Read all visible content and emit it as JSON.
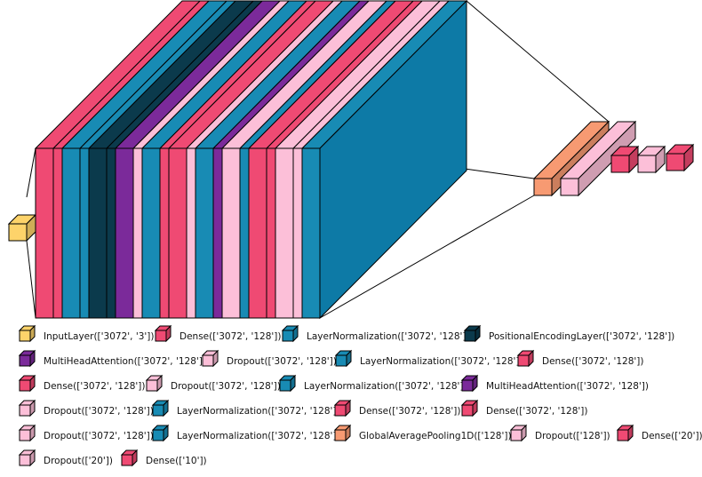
{
  "colors": {
    "input": "#fdd36a",
    "dense": "#ef4a73",
    "layernorm": "#188bb4",
    "posenc": "#0b3a4c",
    "mha": "#7b2a9a",
    "dropout": "#fcbfd8",
    "gap": "#f79a72",
    "outline": "#000000",
    "face": "#0d7aa6"
  },
  "layers": [
    {
      "name": "InputLayer",
      "shape": "['3072', '3']",
      "color": "input"
    },
    {
      "name": "Dense",
      "shape": "['3072', '128']",
      "color": "dense"
    },
    {
      "name": "Dense",
      "shape": "['3072', '128']",
      "color": "dense"
    },
    {
      "name": "LayerNormalization",
      "shape": "['3072', '128']",
      "color": "layernorm"
    },
    {
      "name": "LayerNormalization",
      "shape": "['3072', '128']",
      "color": "layernorm"
    },
    {
      "name": "PositionalEncodingLayer",
      "shape": "['3072', '128']",
      "color": "posenc"
    },
    {
      "name": "PositionalEncodingLayer",
      "shape": "['3072', '128']",
      "color": "posenc"
    },
    {
      "name": "MultiHeadAttention",
      "shape": "['3072', '128']",
      "color": "mha"
    },
    {
      "name": "Dropout",
      "shape": "['3072', '128']",
      "color": "dropout"
    },
    {
      "name": "LayerNormalization",
      "shape": "['3072', '128']",
      "color": "layernorm"
    },
    {
      "name": "Dense",
      "shape": "['3072', '128']",
      "color": "dense"
    },
    {
      "name": "Dense",
      "shape": "['3072', '128']",
      "color": "dense"
    },
    {
      "name": "Dropout",
      "shape": "['3072', '128']",
      "color": "dropout"
    },
    {
      "name": "LayerNormalization",
      "shape": "['3072', '128']",
      "color": "layernorm"
    },
    {
      "name": "MultiHeadAttention",
      "shape": "['3072', '128']",
      "color": "mha"
    },
    {
      "name": "Dropout",
      "shape": "['3072', '128']",
      "color": "dropout"
    },
    {
      "name": "LayerNormalization",
      "shape": "['3072', '128']",
      "color": "layernorm"
    },
    {
      "name": "Dense",
      "shape": "['3072', '128']",
      "color": "dense"
    },
    {
      "name": "Dense",
      "shape": "['3072', '128']",
      "color": "dense"
    },
    {
      "name": "Dropout",
      "shape": "['3072', '128']",
      "color": "dropout"
    },
    {
      "name": "Dropout",
      "shape": "['3072', '128']",
      "color": "dropout"
    },
    {
      "name": "LayerNormalization",
      "shape": "['3072', '128']",
      "color": "layernorm"
    },
    {
      "name": "GlobalAveragePooling1D",
      "shape": "['128']",
      "color": "gap"
    },
    {
      "name": "Dropout",
      "shape": "['128']",
      "color": "dropout"
    },
    {
      "name": "Dense",
      "shape": "['20']",
      "color": "dense"
    },
    {
      "name": "Dropout",
      "shape": "['20']",
      "color": "dropout"
    },
    {
      "name": "Dense",
      "shape": "['10']",
      "color": "dense"
    }
  ],
  "legend": [
    {
      "label": "InputLayer(['3072', '3'])",
      "color": "input"
    },
    {
      "label": "Dense(['3072', '128'])",
      "color": "dense"
    },
    {
      "label": "LayerNormalization(['3072', '128'])",
      "color": "layernorm"
    },
    {
      "label": "PositionalEncodingLayer(['3072', '128'])",
      "color": "posenc"
    },
    {
      "label": "MultiHeadAttention(['3072', '128'])",
      "color": "mha"
    },
    {
      "label": "Dropout(['3072', '128'])",
      "color": "dropout"
    },
    {
      "label": "LayerNormalization(['3072', '128'])",
      "color": "layernorm"
    },
    {
      "label": "Dense(['3072', '128'])",
      "color": "dense"
    },
    {
      "label": "Dense(['3072', '128'])",
      "color": "dense"
    },
    {
      "label": "Dropout(['3072', '128'])",
      "color": "dropout"
    },
    {
      "label": "LayerNormalization(['3072', '128'])",
      "color": "layernorm"
    },
    {
      "label": "MultiHeadAttention(['3072', '128'])",
      "color": "mha"
    },
    {
      "label": "Dropout(['3072', '128'])",
      "color": "dropout"
    },
    {
      "label": "LayerNormalization(['3072', '128'])",
      "color": "layernorm"
    },
    {
      "label": "Dense(['3072', '128'])",
      "color": "dense"
    },
    {
      "label": "Dense(['3072', '128'])",
      "color": "dense"
    },
    {
      "label": "Dropout(['3072', '128'])",
      "color": "dropout"
    },
    {
      "label": "LayerNormalization(['3072', '128'])",
      "color": "layernorm"
    },
    {
      "label": "GlobalAveragePooling1D(['128'])",
      "color": "gap"
    },
    {
      "label": "Dropout(['128'])",
      "color": "dropout"
    },
    {
      "label": "Dense(['20'])",
      "color": "dense"
    },
    {
      "label": "Dropout(['20'])",
      "color": "dropout"
    },
    {
      "label": "Dense(['10'])",
      "color": "dense"
    }
  ]
}
